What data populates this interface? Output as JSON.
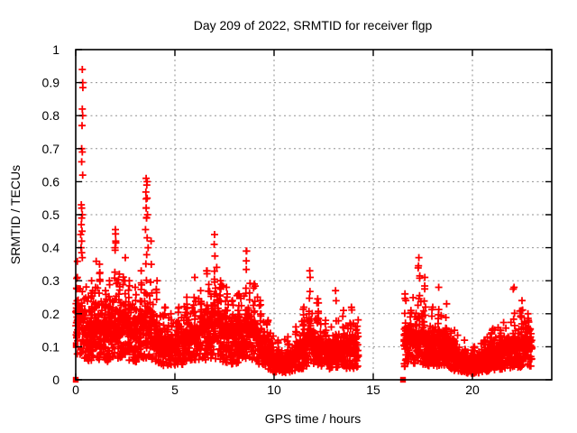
{
  "window": {
    "background": "#ffffff"
  },
  "chart_data": {
    "type": "scatter",
    "title": "Day 209 of 2022, SRMTID for receiver flgp",
    "xlabel": "GPS time / hours",
    "ylabel": "SRMTID / TECUs",
    "xlim": [
      0,
      24
    ],
    "ylim": [
      0,
      1
    ],
    "xticks": [
      0,
      5,
      10,
      15,
      20
    ],
    "yticks": [
      0,
      0.1,
      0.2,
      0.3,
      0.4,
      0.5,
      0.6,
      0.7,
      0.8,
      0.9,
      1
    ],
    "ytick_labels": [
      "0",
      "0.1",
      "0.2",
      "0.3",
      "0.4",
      "0.5",
      "0.6",
      "0.7",
      "0.8",
      "0.9",
      "1"
    ],
    "grid": true,
    "legend": "none",
    "marker_color": "#ff0000",
    "grid_color": "#909090",
    "border_color": "#000000",
    "series": [
      {
        "name": "srmtid-plus-markers",
        "marker": "plus",
        "color": "#ff0000",
        "segments": [
          [
            0,
            14.25
          ],
          [
            16.55,
            23.0
          ]
        ],
        "samples_per_hour": 120,
        "seed": 11,
        "band_levels": [
          [
            0,
            0.2
          ],
          [
            0.3,
            0.19
          ],
          [
            0.6,
            0.15
          ],
          [
            1.0,
            0.16
          ],
          [
            1.5,
            0.14
          ],
          [
            2.0,
            0.17
          ],
          [
            2.5,
            0.16
          ],
          [
            3.0,
            0.13
          ],
          [
            3.5,
            0.17
          ],
          [
            3.8,
            0.15
          ],
          [
            4.3,
            0.11
          ],
          [
            5.0,
            0.1
          ],
          [
            5.5,
            0.12
          ],
          [
            6.0,
            0.13
          ],
          [
            6.6,
            0.16
          ],
          [
            7.0,
            0.17
          ],
          [
            7.5,
            0.14
          ],
          [
            8.0,
            0.12
          ],
          [
            8.6,
            0.16
          ],
          [
            9.0,
            0.14
          ],
          [
            9.5,
            0.1
          ],
          [
            10.0,
            0.06
          ],
          [
            10.5,
            0.055
          ],
          [
            11.0,
            0.065
          ],
          [
            11.5,
            0.09
          ],
          [
            11.8,
            0.12
          ],
          [
            12.2,
            0.1
          ],
          [
            12.7,
            0.08
          ],
          [
            13.1,
            0.1
          ],
          [
            13.5,
            0.09
          ],
          [
            14.0,
            0.09
          ],
          [
            14.25,
            0.1
          ],
          [
            16.55,
            0.1
          ],
          [
            16.8,
            0.12
          ],
          [
            17.3,
            0.13
          ],
          [
            17.6,
            0.12
          ],
          [
            18.0,
            0.1
          ],
          [
            18.3,
            0.11
          ],
          [
            18.8,
            0.09
          ],
          [
            19.3,
            0.06
          ],
          [
            19.8,
            0.05
          ],
          [
            20.3,
            0.05
          ],
          [
            20.8,
            0.07
          ],
          [
            21.3,
            0.08
          ],
          [
            21.8,
            0.09
          ],
          [
            22.1,
            0.1
          ],
          [
            22.5,
            0.1
          ],
          [
            23.0,
            0.11
          ]
        ],
        "spikes": [
          [
            0.08,
            0.31
          ],
          [
            0.8,
            0.3
          ],
          [
            1.0,
            0.28
          ],
          [
            1.2,
            0.35
          ],
          [
            1.5,
            0.27
          ],
          [
            1.7,
            0.3
          ],
          [
            2.0,
            0.455
          ],
          [
            2.2,
            0.32
          ],
          [
            2.5,
            0.37
          ],
          [
            2.7,
            0.3
          ],
          [
            3.0,
            0.28
          ],
          [
            3.3,
            0.33
          ],
          [
            3.55,
            0.61
          ],
          [
            3.8,
            0.42
          ],
          [
            4.1,
            0.3
          ],
          [
            4.5,
            0.22
          ],
          [
            4.8,
            0.2
          ],
          [
            5.2,
            0.22
          ],
          [
            5.6,
            0.25
          ],
          [
            6.0,
            0.31
          ],
          [
            6.3,
            0.27
          ],
          [
            6.6,
            0.33
          ],
          [
            7.0,
            0.44
          ],
          [
            7.3,
            0.3
          ],
          [
            7.6,
            0.28
          ],
          [
            7.9,
            0.24
          ],
          [
            8.2,
            0.26
          ],
          [
            8.6,
            0.39
          ],
          [
            9.0,
            0.29
          ],
          [
            9.3,
            0.24
          ],
          [
            9.7,
            0.18
          ],
          [
            10.2,
            0.12
          ],
          [
            10.7,
            0.13
          ],
          [
            11.1,
            0.16
          ],
          [
            11.5,
            0.22
          ],
          [
            11.8,
            0.33
          ],
          [
            12.2,
            0.245
          ],
          [
            12.6,
            0.18
          ],
          [
            13.1,
            0.27
          ],
          [
            13.5,
            0.21
          ],
          [
            13.9,
            0.22
          ],
          [
            16.6,
            0.26
          ],
          [
            16.9,
            0.21
          ],
          [
            17.3,
            0.37
          ],
          [
            17.6,
            0.31
          ],
          [
            18.0,
            0.22
          ],
          [
            18.3,
            0.28
          ],
          [
            18.7,
            0.23
          ],
          [
            19.1,
            0.15
          ],
          [
            19.6,
            0.12
          ],
          [
            20.1,
            0.1
          ],
          [
            20.6,
            0.12
          ],
          [
            21.0,
            0.15
          ],
          [
            21.4,
            0.15
          ],
          [
            21.8,
            0.13
          ],
          [
            22.1,
            0.28
          ],
          [
            22.5,
            0.24
          ],
          [
            22.8,
            0.2
          ]
        ],
        "outliers": [
          [
            0.33,
            0.94
          ],
          [
            0.35,
            0.9
          ],
          [
            0.36,
            0.885
          ],
          [
            0.33,
            0.82
          ],
          [
            0.35,
            0.8
          ],
          [
            0.32,
            0.77
          ],
          [
            0.3,
            0.7
          ],
          [
            0.33,
            0.69
          ],
          [
            0.3,
            0.66
          ],
          [
            0.35,
            0.62
          ],
          [
            0.28,
            0.53
          ],
          [
            0.3,
            0.52
          ],
          [
            0.33,
            0.5
          ],
          [
            0.3,
            0.49
          ],
          [
            0.28,
            0.47
          ],
          [
            0.32,
            0.45
          ],
          [
            0.25,
            0.44
          ],
          [
            0.3,
            0.42
          ],
          [
            0.27,
            0.4
          ],
          [
            0.3,
            0.385
          ],
          [
            0.33,
            0.37
          ],
          [
            3.55,
            0.61
          ],
          [
            3.6,
            0.6
          ],
          [
            3.58,
            0.59
          ],
          [
            3.6,
            0.55
          ],
          [
            3.55,
            0.52
          ],
          [
            3.62,
            0.5
          ],
          [
            3.57,
            0.49
          ],
          [
            3.52,
            0.455
          ],
          [
            3.6,
            0.43
          ],
          [
            3.65,
            0.4
          ],
          [
            2.0,
            0.455
          ],
          [
            2.02,
            0.42
          ],
          [
            1.98,
            0.4
          ],
          [
            7.0,
            0.44
          ],
          [
            6.98,
            0.41
          ],
          [
            7.02,
            0.375
          ],
          [
            8.62,
            0.39
          ],
          [
            8.6,
            0.36
          ],
          [
            11.8,
            0.33
          ],
          [
            11.82,
            0.31
          ],
          [
            17.3,
            0.37
          ],
          [
            17.28,
            0.345
          ],
          [
            1.2,
            0.35
          ],
          [
            1.22,
            0.325
          ]
        ]
      },
      {
        "name": "square-markers",
        "marker": "filled-square",
        "color": "#ff0000",
        "points": [
          [
            0,
            0
          ],
          [
            0,
            0.105
          ],
          [
            16.5,
            0
          ]
        ]
      }
    ]
  }
}
